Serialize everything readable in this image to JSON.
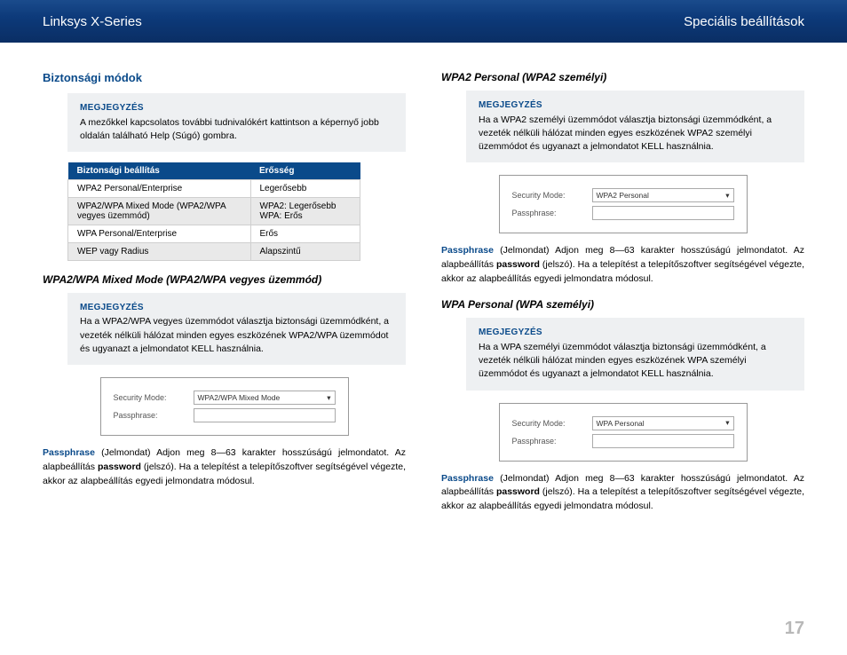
{
  "header": {
    "left": "Linksys X-Series",
    "right": "Speciális beállítások"
  },
  "page_number": "17",
  "colors": {
    "accent": "#0a4a8a",
    "note_bg": "#eef0f2",
    "table_alt_row": "#e9e9e9",
    "page_num": "#b8b8b8",
    "header_gradient_top": "#1a4b8c",
    "header_gradient_bottom": "#0a2e64"
  },
  "left": {
    "heading": "Biztonsági módok",
    "note1": {
      "label": "MEGJEGYZÉS",
      "text": "A mezőkkel kapcsolatos további tudnivalókért kattintson a képernyő jobb oldalán található Help (Súgó) gombra."
    },
    "table": {
      "headers": [
        "Biztonsági beállítás",
        "Erősség"
      ],
      "rows": [
        [
          "WPA2 Personal/Enterprise",
          "Legerősebb"
        ],
        [
          "WPA2/WPA Mixed Mode (WPA2/WPA vegyes üzemmód)",
          "WPA2: Legerősebb WPA: Erős"
        ],
        [
          "WPA Personal/Enterprise",
          "Erős"
        ],
        [
          "WEP vagy Radius",
          "Alapszintű"
        ]
      ]
    },
    "mixed": {
      "heading": "WPA2/WPA Mixed Mode (WPA2/WPA vegyes üzemmód)",
      "note": {
        "label": "MEGJEGYZÉS",
        "text": "Ha a WPA2/WPA vegyes üzemmódot választja biztonsági üzemmódként, a vezeték nélküli hálózat minden egyes eszközének WPA2/WPA üzemmódot és ugyanazt a jelmondatot KELL használnia."
      },
      "form": {
        "mode_label": "Security Mode:",
        "mode_value": "WPA2/WPA Mixed Mode",
        "pass_label": "Passphrase:"
      },
      "body_kw": "Passphrase",
      "body_rest": " (Jelmondat)  Adjon meg 8—63 karakter hosszúságú jelmondatot. Az alapbeállítás ",
      "body_pw": "password",
      "body_rest2": " (jelszó). Ha a telepítést a telepítőszoftver segítségével végezte, akkor az alapbeállítás egyedi jelmondatra módosul."
    }
  },
  "right": {
    "wpa2p": {
      "heading": "WPA2 Personal (WPA2 személyi)",
      "note": {
        "label": "MEGJEGYZÉS",
        "text": "Ha a WPA2 személyi üzemmódot választja biztonsági üzemmódként, a vezeték nélküli hálózat minden egyes eszközének WPA2 személyi üzemmódot és ugyanazt a jelmondatot KELL használnia."
      },
      "form": {
        "mode_label": "Security Mode:",
        "mode_value": "WPA2 Personal",
        "pass_label": "Passphrase:"
      },
      "body_kw": "Passphrase",
      "body_rest": " (Jelmondat)  Adjon meg 8—63 karakter hosszúságú jelmondatot. Az alapbeállítás ",
      "body_pw": "password",
      "body_rest2": " (jelszó). Ha a telepítést a telepítőszoftver segítségével végezte, akkor az alapbeállítás egyedi jelmondatra módosul."
    },
    "wpap": {
      "heading": "WPA Personal (WPA személyi)",
      "note": {
        "label": "MEGJEGYZÉS",
        "text": "Ha a WPA személyi üzemmódot választja biztonsági üzemmódként, a vezeték nélküli hálózat minden egyes eszközének WPA személyi üzemmódot és ugyanazt a jelmondatot KELL használnia."
      },
      "form": {
        "mode_label": "Security Mode:",
        "mode_value": "WPA Personal",
        "pass_label": "Passphrase:"
      },
      "body_kw": "Passphrase",
      "body_rest": " (Jelmondat)  Adjon meg 8—63 karakter hosszúságú jelmondatot. Az alapbeállítás ",
      "body_pw": "password",
      "body_rest2": " (jelszó). Ha a telepítést a telepítőszoftver segítségével végezte, akkor az alapbeállítás egyedi jelmondatra módosul."
    }
  }
}
